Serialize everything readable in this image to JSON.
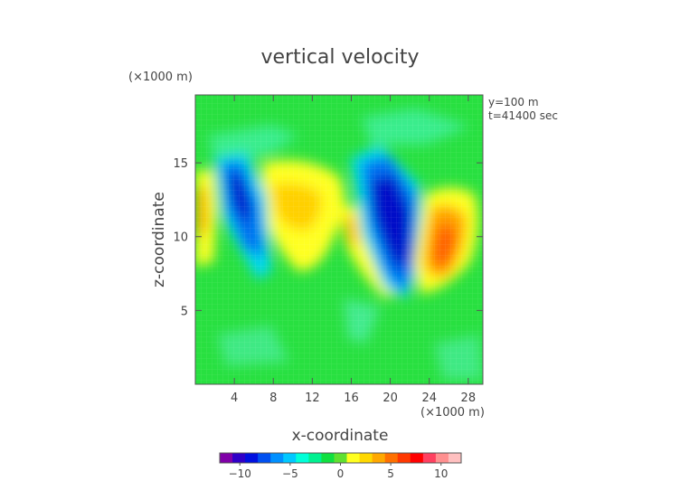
{
  "chart_data": {
    "type": "heatmap",
    "title": "vertical velocity",
    "xlabel": "x-coordinate",
    "ylabel": "z-coordinate",
    "x_unit": "(×1000 m)",
    "y_unit": "(×1000 m)",
    "annotations": [
      "y=100 m",
      "t=41400 sec"
    ],
    "xlim": [
      0,
      29.5
    ],
    "ylim": [
      0,
      19.6
    ],
    "x_ticks": [
      4,
      8,
      12,
      16,
      20,
      24,
      28
    ],
    "y_ticks": [
      5,
      10,
      15
    ],
    "x_tick_labels": [
      "4",
      "8",
      "12",
      "16",
      "20",
      "24",
      "28"
    ],
    "y_tick_labels": [
      "5",
      "10",
      "15"
    ],
    "colorbar": {
      "min": -12,
      "max": 12,
      "ticks": [
        -10,
        -5,
        0,
        5,
        10
      ],
      "tick_labels": [
        "−10",
        "−5",
        "0",
        "5",
        "10"
      ],
      "colors": [
        "#8000a8",
        "#3000c8",
        "#0010e0",
        "#0050f0",
        "#0090ff",
        "#00c8ff",
        "#00ffd8",
        "#00f090",
        "#10e040",
        "#60e030",
        "#ffff20",
        "#ffd800",
        "#ffa800",
        "#ff7000",
        "#ff3800",
        "#ff0000",
        "#ff4060",
        "#ff9090",
        "#ffc0c0"
      ]
    },
    "features": [
      {
        "label": "downdraft",
        "x": 5.5,
        "z": 12.0,
        "w": -9
      },
      {
        "label": "updraft",
        "x": 10.5,
        "z": 12.5,
        "w": 3
      },
      {
        "label": "downdraft",
        "x": 20.5,
        "z": 10.0,
        "w": -10
      },
      {
        "label": "updraft",
        "x": 25.5,
        "z": 10.0,
        "w": 6
      },
      {
        "label": "updraft",
        "x": 0.6,
        "z": 12.0,
        "w": 3
      }
    ]
  }
}
